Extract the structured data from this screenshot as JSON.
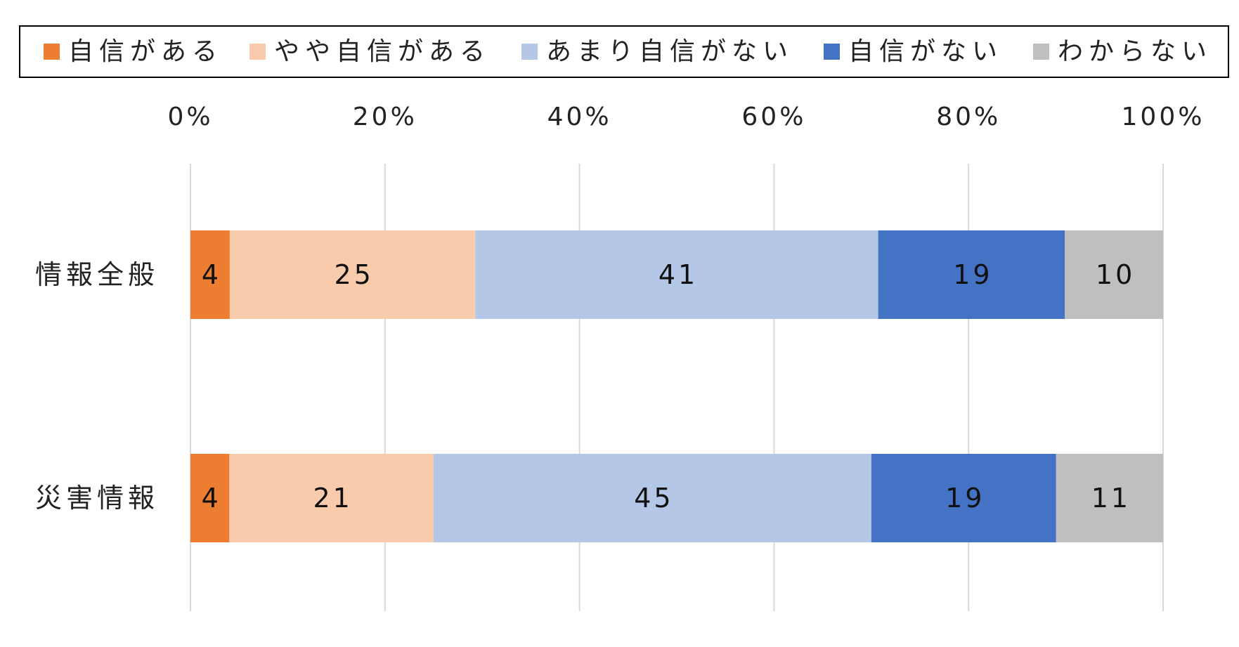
{
  "chart_data": {
    "type": "bar",
    "orientation": "horizontal",
    "stacked": true,
    "percent": true,
    "categories": [
      "情報全般",
      "災害情報"
    ],
    "series": [
      {
        "name": "自信がある",
        "color": "#ED7D31",
        "values": [
          4,
          4
        ]
      },
      {
        "name": "やや自信がある",
        "color": "#F8CBAD",
        "values": [
          25,
          21
        ]
      },
      {
        "name": "あまり自信がない",
        "color": "#B4C7E7",
        "values": [
          41,
          45
        ]
      },
      {
        "name": "自信がない",
        "color": "#4472C4",
        "values": [
          19,
          19
        ]
      },
      {
        "name": "わからない",
        "color": "#BFBFBF",
        "values": [
          10,
          11
        ]
      }
    ],
    "xlim": [
      0,
      100
    ],
    "xticks": [
      "0%",
      "20%",
      "40%",
      "60%",
      "80%",
      "100%"
    ],
    "grid": true,
    "legend_position": "top",
    "title": "",
    "xlabel": "",
    "ylabel": ""
  }
}
